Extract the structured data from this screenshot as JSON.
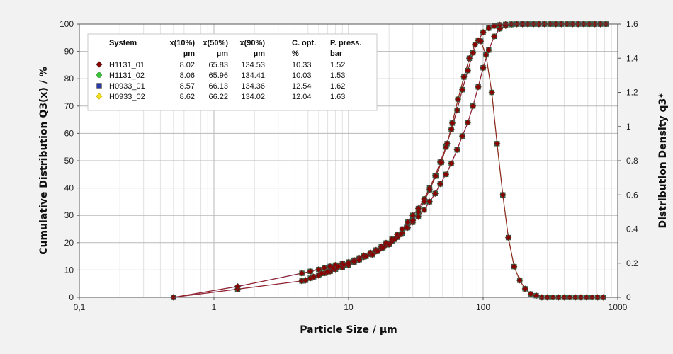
{
  "chart_data": {
    "type": "line",
    "xlabel": "Particle Size / µm",
    "ylabel_left": "Cumulative Distribution Q3(x) / %",
    "ylabel_right": "Distribution Density q3*",
    "x_scale": "log",
    "xlim": [
      0.1,
      1000
    ],
    "ylim_left": [
      0,
      100
    ],
    "ylim_right": [
      0,
      1.6
    ],
    "x_ticks": [
      {
        "v": 0.1,
        "label": "0,1"
      },
      {
        "v": 1,
        "label": "1"
      },
      {
        "v": 10,
        "label": "10"
      },
      {
        "v": 100,
        "label": "100"
      },
      {
        "v": 1000,
        "label": "1000"
      }
    ],
    "y_left_ticks": [
      "0",
      "10",
      "20",
      "30",
      "40",
      "50",
      "60",
      "70",
      "80",
      "90",
      "100"
    ],
    "y_right_ticks": [
      "0",
      "0.2",
      "0.4",
      "0.6",
      "0.8",
      "1",
      "1.2",
      "1.4",
      "1.6"
    ],
    "grid": true,
    "legend": {
      "placement": "top-left",
      "headers": [
        "System",
        "x(10%)",
        "x(50%)",
        "x(90%)",
        "C. opt.",
        "P. press."
      ],
      "units": [
        "",
        "µm",
        "µm",
        "µm",
        "%",
        "bar"
      ],
      "rows": [
        [
          "H1131_01",
          "8.02",
          "65.83",
          "134.53",
          "10.33",
          "1.52"
        ],
        [
          "H1131_02",
          "8.06",
          "65.96",
          "134.41",
          "10.03",
          "1.53"
        ],
        [
          "H0933_01",
          "8.57",
          "66.13",
          "134.36",
          "12.54",
          "1.62"
        ],
        [
          "H0933_02",
          "8.62",
          "66.22",
          "134.02",
          "12.04",
          "1.63"
        ]
      ]
    },
    "series": [
      {
        "name": "H1131_01",
        "marker": "diamond",
        "color": "#8b0000",
        "line_color": "#9b2020"
      },
      {
        "name": "H1131_02",
        "marker": "circle",
        "color": "#3cc43c",
        "line_color": "#4caf50"
      },
      {
        "name": "H0933_01",
        "marker": "square",
        "color": "#2a3aa8",
        "line_color": "#5a5ad0"
      },
      {
        "name": "H0933_02",
        "marker": "diamond",
        "color": "#f0e020",
        "line_color": "#e8c020"
      }
    ],
    "curves": {
      "Q3": {
        "axis": "left",
        "x": [
          0.5,
          1.5,
          4.5,
          5.2,
          6.0,
          6.6,
          7.3,
          8.0,
          9.0,
          10.0,
          11.0,
          12.0,
          13.0,
          14.5,
          16.0,
          17.5,
          19.0,
          21.0,
          23.0,
          25.0,
          27.5,
          30.0,
          33.0,
          36.5,
          40.0,
          44.0,
          48.0,
          53.0,
          58.0,
          64.0,
          70.0,
          77.0,
          84.0,
          92.0,
          100.0,
          110.0,
          121.0,
          133.0,
          147.0,
          162.0,
          178.0,
          196.0,
          215.0,
          237.0,
          260.0,
          286.0,
          315.0,
          347.0,
          381.0,
          420.0,
          462.0,
          508.0,
          559.0,
          615.0,
          676.0,
          744.0,
          818.0
        ],
        "y_a": [
          0.0,
          3.0,
          6.0,
          7.0,
          8.0,
          8.8,
          9.5,
          10.3,
          11.0,
          11.8,
          12.8,
          13.8,
          14.8,
          15.8,
          16.8,
          18.0,
          19.2,
          20.5,
          22.0,
          23.5,
          25.5,
          27.5,
          29.5,
          32.0,
          35.0,
          38.0,
          41.5,
          45.0,
          49.0,
          54.0,
          59.0,
          64.0,
          70.0,
          77.0,
          84.0,
          90.5,
          95.5,
          98.3,
          99.4,
          99.8,
          100,
          100,
          100,
          100,
          100,
          100,
          100,
          100,
          100,
          100,
          100,
          100,
          100,
          100,
          100,
          100,
          100
        ],
        "y_b": [
          0.0,
          4.0,
          8.8,
          9.5,
          10.2,
          10.8,
          11.3,
          11.8,
          12.3,
          12.9,
          13.6,
          14.4,
          15.3,
          16.3,
          17.3,
          18.6,
          19.9,
          21.3,
          23.0,
          25.0,
          27.5,
          30.0,
          32.5,
          36.0,
          40.0,
          44.5,
          49.5,
          55.0,
          61.5,
          68.5,
          76.0,
          83.0,
          89.5,
          94.0,
          97.0,
          98.5,
          99.3,
          99.7,
          99.9,
          100,
          100,
          100,
          100,
          100,
          100,
          100,
          100,
          100,
          100,
          100,
          100,
          100,
          100,
          100,
          100,
          100,
          100
        ]
      },
      "q3": {
        "axis": "right",
        "x": [
          4.8,
          5.5,
          6.3,
          7.0,
          7.7,
          8.4,
          9.2,
          10.0,
          11.0,
          12.0,
          13.5,
          15.0,
          16.5,
          18.0,
          20.0,
          22.0,
          24.5,
          27.0,
          30.0,
          33.0,
          36.5,
          40.0,
          44.5,
          49.0,
          54.0,
          59.0,
          65.0,
          72.0,
          79.0,
          87.0,
          96.0,
          105.0,
          116.0,
          127.0,
          140.0,
          154.0,
          170.0,
          187.0,
          205.0,
          226.0,
          248.0,
          273.0,
          300.0,
          330.0,
          363.0,
          400.0,
          440.0,
          484.0,
          532.0,
          586.0,
          644.0,
          709.0,
          780.0
        ],
        "y": [
          0.1,
          0.12,
          0.14,
          0.15,
          0.17,
          0.18,
          0.19,
          0.2,
          0.21,
          0.22,
          0.24,
          0.25,
          0.27,
          0.29,
          0.31,
          0.34,
          0.37,
          0.41,
          0.45,
          0.5,
          0.56,
          0.63,
          0.71,
          0.79,
          0.9,
          1.02,
          1.16,
          1.29,
          1.4,
          1.48,
          1.5,
          1.42,
          1.2,
          0.9,
          0.6,
          0.35,
          0.18,
          0.1,
          0.05,
          0.02,
          0.01,
          0.0,
          0.0,
          0.0,
          0.0,
          0.0,
          0.0,
          0.0,
          0.0,
          0.0,
          0.0,
          0.0,
          0.0
        ]
      }
    }
  }
}
